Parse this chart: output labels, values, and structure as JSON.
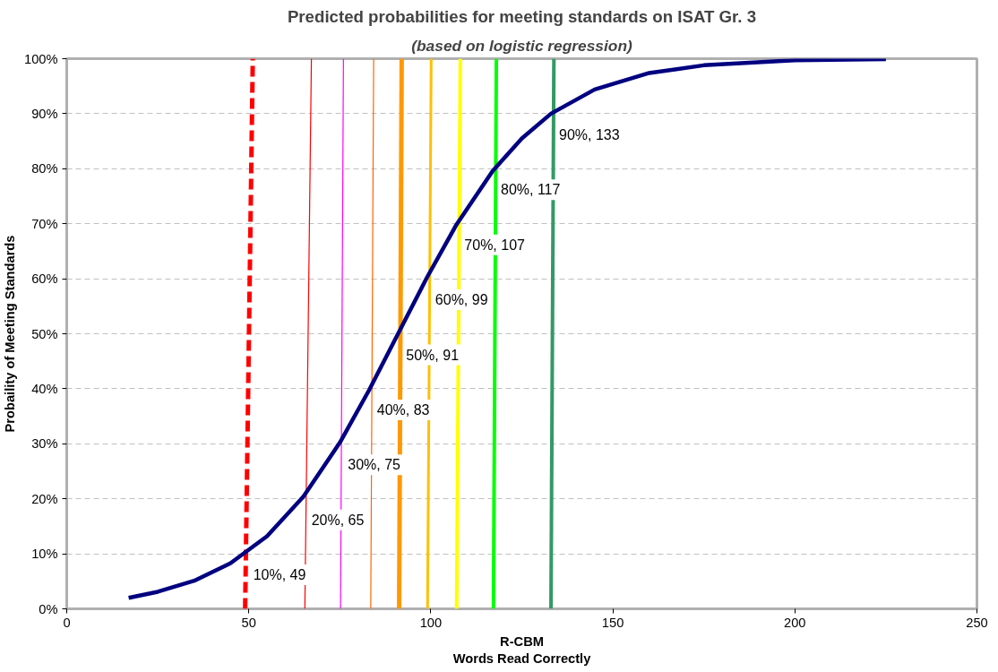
{
  "chart_data": {
    "type": "line",
    "title": "Predicted probabilities for meeting standards on ISAT Gr. 3",
    "subtitle": "(based on logistic regression)",
    "xlabel": "R-CBM\nWords Read Correctly",
    "ylabel": "Probaility of Meeting Standards",
    "xlim": [
      0,
      250
    ],
    "xticks": [
      0,
      50,
      100,
      150,
      200,
      250
    ],
    "ylim": [
      0,
      100
    ],
    "yticks": [
      {
        "value": 0,
        "label": "0%"
      },
      {
        "value": 10,
        "label": "10%"
      },
      {
        "value": 20,
        "label": "20%"
      },
      {
        "value": 30,
        "label": "30%"
      },
      {
        "value": 40,
        "label": "40%"
      },
      {
        "value": 50,
        "label": "50%"
      },
      {
        "value": 60,
        "label": "60%"
      },
      {
        "value": 70,
        "label": "70%"
      },
      {
        "value": 80,
        "label": "80%"
      },
      {
        "value": 90,
        "label": "90%"
      },
      {
        "value": 100,
        "label": "100%"
      }
    ],
    "grid": "y",
    "marker": "none",
    "series": [
      {
        "color": "#ff0000",
        "line_style": "dashed",
        "x": [
          49,
          51.1
        ],
        "values": [
          0,
          100
        ]
      },
      {
        "color": "#ff0000",
        "x": [
          65.4,
          67.2
        ],
        "values": [
          0,
          100
        ]
      },
      {
        "color": "#ff00ff",
        "x": [
          75.2,
          76
        ],
        "values": [
          0,
          100
        ]
      },
      {
        "color": "#ff6600",
        "x": [
          83.5,
          84.3
        ],
        "values": [
          0,
          100
        ]
      },
      {
        "color": "#ff9900",
        "x": [
          91.3,
          92
        ],
        "values": [
          0,
          100
        ]
      },
      {
        "color": "#ffc000",
        "x": [
          99.1,
          100.1
        ],
        "values": [
          0,
          100
        ]
      },
      {
        "color": "#ffff00",
        "x": [
          107.1,
          108.1
        ],
        "values": [
          0,
          100
        ]
      },
      {
        "color": "#00ff00",
        "x": [
          117.2,
          118
        ],
        "values": [
          0,
          100
        ]
      },
      {
        "color": "#339966",
        "x": [
          133,
          133.8
        ],
        "values": [
          0,
          100
        ]
      },
      {
        "color": "#000080",
        "x": [
          17,
          25,
          35,
          45,
          55,
          65,
          75,
          83,
          91,
          99,
          107,
          117,
          125,
          133,
          145,
          160,
          175,
          200,
          225
        ],
        "values": [
          2.0,
          3.1,
          5.1,
          8.3,
          13.2,
          20.4,
          30.2,
          39.7,
          50,
          60.3,
          69.8,
          79.6,
          85.5,
          90,
          94.4,
          97.4,
          98.8,
          99.7,
          99.9
        ]
      }
    ],
    "annotations": [
      {
        "text": "10%, 49",
        "x": 49,
        "y": 10
      },
      {
        "text": "20%, 65",
        "x": 65,
        "y": 20
      },
      {
        "text": "30%, 75",
        "x": 75,
        "y": 30
      },
      {
        "text": "40%, 83",
        "x": 83,
        "y": 40
      },
      {
        "text": "50%, 91",
        "x": 91,
        "y": 50
      },
      {
        "text": "60%, 99",
        "x": 99,
        "y": 60
      },
      {
        "text": "70%, 107",
        "x": 107,
        "y": 70
      },
      {
        "text": "80%, 117",
        "x": 117,
        "y": 80
      },
      {
        "text": "90%, 133",
        "x": 133,
        "y": 90
      }
    ]
  }
}
